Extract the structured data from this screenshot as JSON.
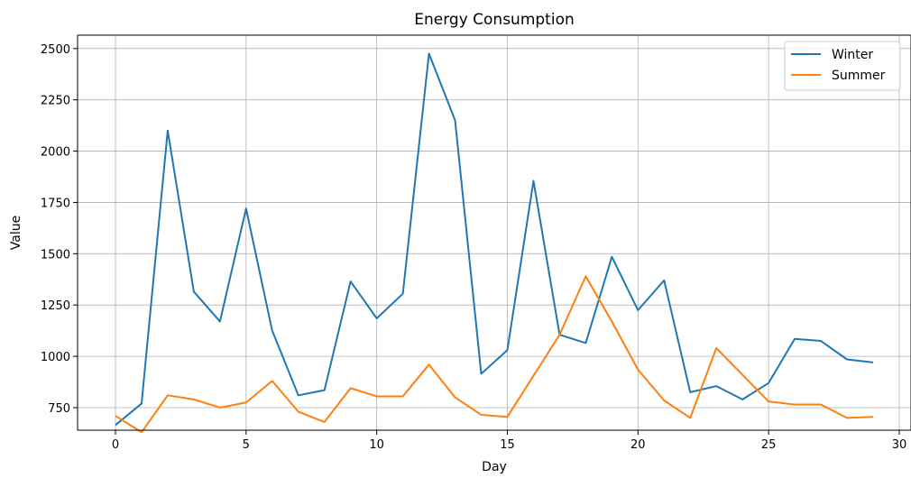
{
  "chart_data": {
    "type": "line",
    "title": "Energy Consumption",
    "xlabel": "Day",
    "ylabel": "Value",
    "x": [
      0,
      1,
      2,
      3,
      4,
      5,
      6,
      7,
      8,
      9,
      10,
      11,
      12,
      13,
      14,
      15,
      16,
      17,
      18,
      19,
      20,
      21,
      22,
      23,
      24,
      25,
      26,
      27,
      28,
      29
    ],
    "xlim": [
      -1.45,
      30.45
    ],
    "ylim": [
      640,
      2565
    ],
    "xticks": [
      0,
      5,
      10,
      15,
      20,
      25,
      30
    ],
    "xtick_labels": [
      "0",
      "5",
      "10",
      "15",
      "20",
      "25",
      "30"
    ],
    "yticks": [
      750,
      1000,
      1250,
      1500,
      1750,
      2000,
      2250,
      2500
    ],
    "ytick_labels": [
      "750",
      "1000",
      "1250",
      "1500",
      "1750",
      "2000",
      "2250",
      "2500"
    ],
    "grid": true,
    "legend_position": "top-right",
    "series": [
      {
        "name": "Winter",
        "color": "#1f77b4",
        "values": [
          665,
          770,
          2100,
          1315,
          1170,
          1720,
          1125,
          810,
          835,
          1365,
          1185,
          1305,
          2475,
          2150,
          915,
          1030,
          1855,
          1105,
          1065,
          1485,
          1225,
          1370,
          825,
          855,
          790,
          870,
          1085,
          1075,
          985,
          970
        ]
      },
      {
        "name": "Summer",
        "color": "#ff7f0e",
        "values": [
          710,
          630,
          810,
          790,
          750,
          775,
          880,
          730,
          680,
          845,
          805,
          805,
          960,
          800,
          715,
          705,
          905,
          1105,
          1390,
          1170,
          935,
          785,
          700,
          1040,
          910,
          780,
          765,
          765,
          700,
          705
        ]
      }
    ]
  }
}
